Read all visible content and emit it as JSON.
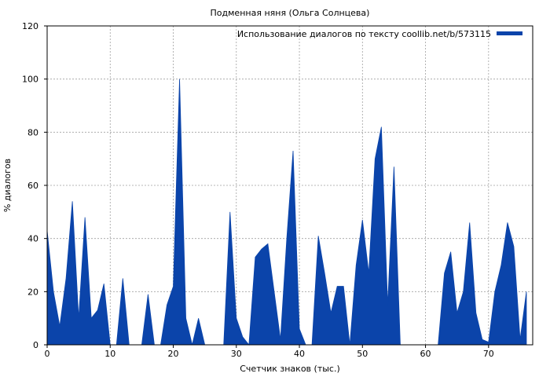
{
  "chart_data": {
    "type": "area",
    "title": "Подменная няня (Ольга Солнцева)",
    "xlabel": "Счетчик знаков (тыс.)",
    "ylabel": "% диалогов",
    "xlim": [
      0,
      77
    ],
    "ylim": [
      0,
      120
    ],
    "xticks": [
      0,
      10,
      20,
      30,
      40,
      50,
      60,
      70
    ],
    "yticks": [
      0,
      20,
      40,
      60,
      80,
      100,
      120
    ],
    "grid": true,
    "legend_position": "top-right",
    "series": [
      {
        "name": "Использование диалогов по тексту coollib.net/b/573115",
        "color": "#0b44aa",
        "x": [
          0,
          1,
          2,
          3,
          4,
          5,
          6,
          7,
          8,
          9,
          10,
          11,
          12,
          13,
          14,
          15,
          16,
          17,
          18,
          19,
          20,
          21,
          22,
          23,
          24,
          25,
          26,
          27,
          28,
          29,
          30,
          31,
          32,
          33,
          34,
          35,
          36,
          37,
          38,
          39,
          40,
          41,
          42,
          43,
          44,
          45,
          46,
          47,
          48,
          49,
          50,
          51,
          52,
          53,
          54,
          55,
          56,
          57,
          58,
          59,
          60,
          61,
          62,
          63,
          64,
          65,
          66,
          67,
          68,
          69,
          70,
          71,
          72,
          73,
          74,
          75,
          76
        ],
        "y": [
          43,
          20,
          7,
          25,
          54,
          10,
          48,
          10,
          13,
          23,
          0,
          0,
          25,
          0,
          0,
          0,
          19,
          0,
          0,
          15,
          22,
          100,
          10,
          0,
          10,
          0,
          0,
          0,
          0,
          50,
          10,
          3,
          0,
          33,
          36,
          38,
          20,
          2,
          40,
          73,
          6,
          0,
          0,
          41,
          27,
          12,
          22,
          22,
          0,
          30,
          47,
          27,
          70,
          82,
          15,
          67,
          0,
          0,
          0,
          0,
          0,
          0,
          0,
          27,
          35,
          12,
          20,
          46,
          12,
          2,
          1,
          20,
          30,
          46,
          37,
          2,
          20
        ]
      }
    ]
  }
}
